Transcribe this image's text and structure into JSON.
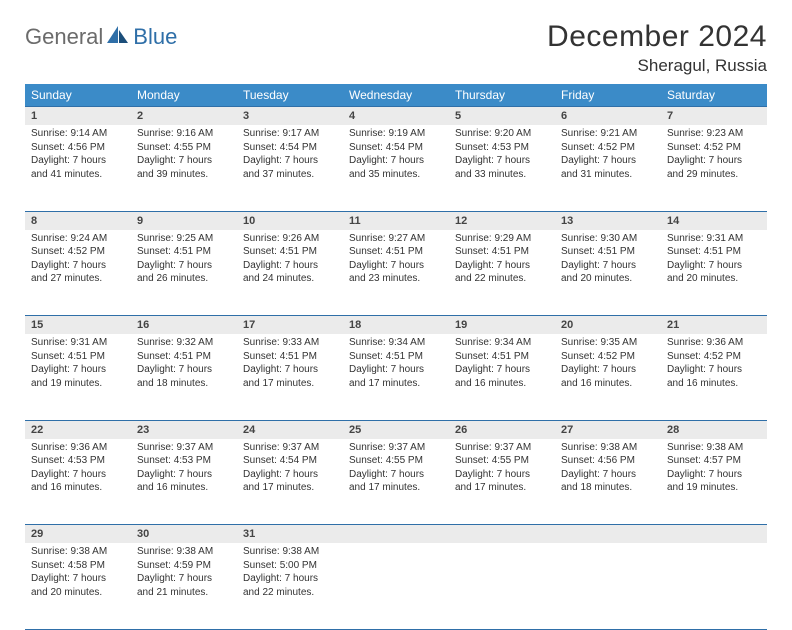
{
  "brand": {
    "part1": "General",
    "part2": "Blue"
  },
  "title": "December 2024",
  "location": "Sheragul, Russia",
  "colors": {
    "header_bg": "#3b8bc8",
    "header_text": "#ffffff",
    "rule": "#2f6fa8",
    "daynum_bg": "#ebebeb",
    "body_text": "#333333"
  },
  "weekdays": [
    "Sunday",
    "Monday",
    "Tuesday",
    "Wednesday",
    "Thursday",
    "Friday",
    "Saturday"
  ],
  "weeks": [
    [
      {
        "n": "1",
        "sr": "Sunrise: 9:14 AM",
        "ss": "Sunset: 4:56 PM",
        "d1": "Daylight: 7 hours",
        "d2": "and 41 minutes."
      },
      {
        "n": "2",
        "sr": "Sunrise: 9:16 AM",
        "ss": "Sunset: 4:55 PM",
        "d1": "Daylight: 7 hours",
        "d2": "and 39 minutes."
      },
      {
        "n": "3",
        "sr": "Sunrise: 9:17 AM",
        "ss": "Sunset: 4:54 PM",
        "d1": "Daylight: 7 hours",
        "d2": "and 37 minutes."
      },
      {
        "n": "4",
        "sr": "Sunrise: 9:19 AM",
        "ss": "Sunset: 4:54 PM",
        "d1": "Daylight: 7 hours",
        "d2": "and 35 minutes."
      },
      {
        "n": "5",
        "sr": "Sunrise: 9:20 AM",
        "ss": "Sunset: 4:53 PM",
        "d1": "Daylight: 7 hours",
        "d2": "and 33 minutes."
      },
      {
        "n": "6",
        "sr": "Sunrise: 9:21 AM",
        "ss": "Sunset: 4:52 PM",
        "d1": "Daylight: 7 hours",
        "d2": "and 31 minutes."
      },
      {
        "n": "7",
        "sr": "Sunrise: 9:23 AM",
        "ss": "Sunset: 4:52 PM",
        "d1": "Daylight: 7 hours",
        "d2": "and 29 minutes."
      }
    ],
    [
      {
        "n": "8",
        "sr": "Sunrise: 9:24 AM",
        "ss": "Sunset: 4:52 PM",
        "d1": "Daylight: 7 hours",
        "d2": "and 27 minutes."
      },
      {
        "n": "9",
        "sr": "Sunrise: 9:25 AM",
        "ss": "Sunset: 4:51 PM",
        "d1": "Daylight: 7 hours",
        "d2": "and 26 minutes."
      },
      {
        "n": "10",
        "sr": "Sunrise: 9:26 AM",
        "ss": "Sunset: 4:51 PM",
        "d1": "Daylight: 7 hours",
        "d2": "and 24 minutes."
      },
      {
        "n": "11",
        "sr": "Sunrise: 9:27 AM",
        "ss": "Sunset: 4:51 PM",
        "d1": "Daylight: 7 hours",
        "d2": "and 23 minutes."
      },
      {
        "n": "12",
        "sr": "Sunrise: 9:29 AM",
        "ss": "Sunset: 4:51 PM",
        "d1": "Daylight: 7 hours",
        "d2": "and 22 minutes."
      },
      {
        "n": "13",
        "sr": "Sunrise: 9:30 AM",
        "ss": "Sunset: 4:51 PM",
        "d1": "Daylight: 7 hours",
        "d2": "and 20 minutes."
      },
      {
        "n": "14",
        "sr": "Sunrise: 9:31 AM",
        "ss": "Sunset: 4:51 PM",
        "d1": "Daylight: 7 hours",
        "d2": "and 20 minutes."
      }
    ],
    [
      {
        "n": "15",
        "sr": "Sunrise: 9:31 AM",
        "ss": "Sunset: 4:51 PM",
        "d1": "Daylight: 7 hours",
        "d2": "and 19 minutes."
      },
      {
        "n": "16",
        "sr": "Sunrise: 9:32 AM",
        "ss": "Sunset: 4:51 PM",
        "d1": "Daylight: 7 hours",
        "d2": "and 18 minutes."
      },
      {
        "n": "17",
        "sr": "Sunrise: 9:33 AM",
        "ss": "Sunset: 4:51 PM",
        "d1": "Daylight: 7 hours",
        "d2": "and 17 minutes."
      },
      {
        "n": "18",
        "sr": "Sunrise: 9:34 AM",
        "ss": "Sunset: 4:51 PM",
        "d1": "Daylight: 7 hours",
        "d2": "and 17 minutes."
      },
      {
        "n": "19",
        "sr": "Sunrise: 9:34 AM",
        "ss": "Sunset: 4:51 PM",
        "d1": "Daylight: 7 hours",
        "d2": "and 16 minutes."
      },
      {
        "n": "20",
        "sr": "Sunrise: 9:35 AM",
        "ss": "Sunset: 4:52 PM",
        "d1": "Daylight: 7 hours",
        "d2": "and 16 minutes."
      },
      {
        "n": "21",
        "sr": "Sunrise: 9:36 AM",
        "ss": "Sunset: 4:52 PM",
        "d1": "Daylight: 7 hours",
        "d2": "and 16 minutes."
      }
    ],
    [
      {
        "n": "22",
        "sr": "Sunrise: 9:36 AM",
        "ss": "Sunset: 4:53 PM",
        "d1": "Daylight: 7 hours",
        "d2": "and 16 minutes."
      },
      {
        "n": "23",
        "sr": "Sunrise: 9:37 AM",
        "ss": "Sunset: 4:53 PM",
        "d1": "Daylight: 7 hours",
        "d2": "and 16 minutes."
      },
      {
        "n": "24",
        "sr": "Sunrise: 9:37 AM",
        "ss": "Sunset: 4:54 PM",
        "d1": "Daylight: 7 hours",
        "d2": "and 17 minutes."
      },
      {
        "n": "25",
        "sr": "Sunrise: 9:37 AM",
        "ss": "Sunset: 4:55 PM",
        "d1": "Daylight: 7 hours",
        "d2": "and 17 minutes."
      },
      {
        "n": "26",
        "sr": "Sunrise: 9:37 AM",
        "ss": "Sunset: 4:55 PM",
        "d1": "Daylight: 7 hours",
        "d2": "and 17 minutes."
      },
      {
        "n": "27",
        "sr": "Sunrise: 9:38 AM",
        "ss": "Sunset: 4:56 PM",
        "d1": "Daylight: 7 hours",
        "d2": "and 18 minutes."
      },
      {
        "n": "28",
        "sr": "Sunrise: 9:38 AM",
        "ss": "Sunset: 4:57 PM",
        "d1": "Daylight: 7 hours",
        "d2": "and 19 minutes."
      }
    ],
    [
      {
        "n": "29",
        "sr": "Sunrise: 9:38 AM",
        "ss": "Sunset: 4:58 PM",
        "d1": "Daylight: 7 hours",
        "d2": "and 20 minutes."
      },
      {
        "n": "30",
        "sr": "Sunrise: 9:38 AM",
        "ss": "Sunset: 4:59 PM",
        "d1": "Daylight: 7 hours",
        "d2": "and 21 minutes."
      },
      {
        "n": "31",
        "sr": "Sunrise: 9:38 AM",
        "ss": "Sunset: 5:00 PM",
        "d1": "Daylight: 7 hours",
        "d2": "and 22 minutes."
      },
      null,
      null,
      null,
      null
    ]
  ]
}
